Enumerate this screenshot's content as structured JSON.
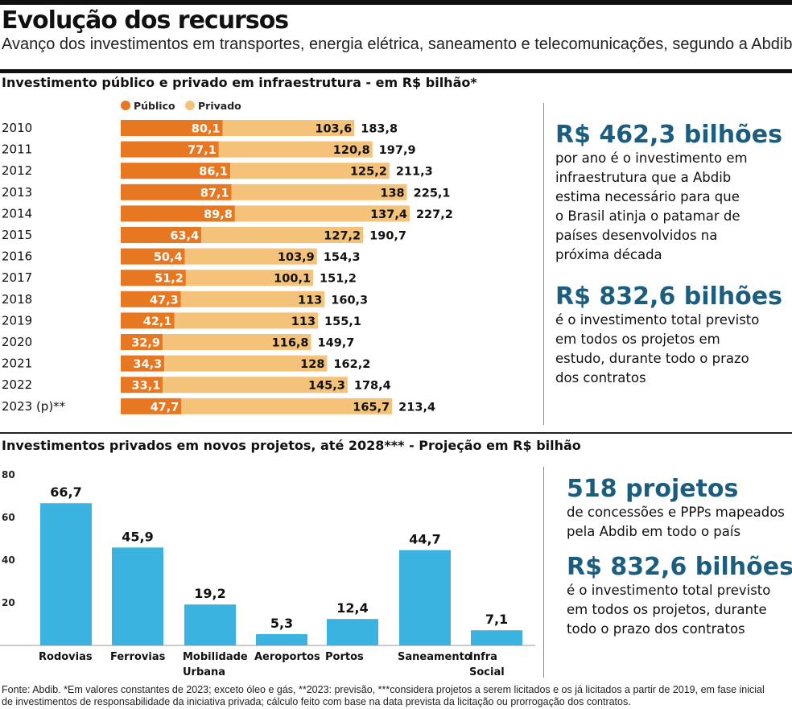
{
  "header": {
    "title": "Evolução dos recursos",
    "subtitle": "Avanço dos investimentos em transportes, energia elétrica, saneamento e telecomunicações, segundo a Abdib"
  },
  "colors": {
    "publico": "#e87722",
    "privado": "#f5c27a",
    "projecao": "#3ab3e0",
    "highlight": "#1a5d7e"
  },
  "chart_data": [
    {
      "type": "bar",
      "orientation": "horizontal",
      "stacked": true,
      "title": "Investimento público e privado em infraestrutura - em R$ bilhão*",
      "legend_position": "top",
      "categories": [
        "2010",
        "2011",
        "2012",
        "2013",
        "2014",
        "2015",
        "2016",
        "2017",
        "2018",
        "2019",
        "2020",
        "2021",
        "2022",
        "2023 (p)**"
      ],
      "series": [
        {
          "name": "Público",
          "values": [
            80.1,
            77.1,
            86.1,
            87.1,
            89.8,
            63.4,
            50.4,
            51.2,
            47.3,
            42.1,
            32.9,
            34.3,
            33.1,
            47.7
          ],
          "labels": [
            "80,1",
            "77,1",
            "86,1",
            "87,1",
            "89,8",
            "63,4",
            "50,4",
            "51,2",
            "47,3",
            "42,1",
            "32,9",
            "34,3",
            "33,1",
            "47,7"
          ]
        },
        {
          "name": "Privado",
          "values": [
            103.6,
            120.8,
            125.2,
            138,
            137.4,
            127.2,
            103.9,
            100.1,
            113,
            113,
            116.8,
            128,
            145.3,
            165.7
          ],
          "labels": [
            "103,6",
            "120,8",
            "125,2",
            "138",
            "137,4",
            "127,2",
            "103,9",
            "100,1",
            "113",
            "113",
            "116,8",
            "128",
            "145,3",
            "165,7"
          ]
        }
      ],
      "totals": [
        183.8,
        197.9,
        211.3,
        225.1,
        227.2,
        190.7,
        154.3,
        151.2,
        160.3,
        155.1,
        149.7,
        162.2,
        178.4,
        213.4
      ],
      "total_labels": [
        "183,8",
        "197,9",
        "211,3",
        "225,1",
        "227,2",
        "190,7",
        "154,3",
        "151,2",
        "160,3",
        "155,1",
        "149,7",
        "162,2",
        "178,4",
        "213,4"
      ]
    },
    {
      "type": "bar",
      "orientation": "vertical",
      "title": "Investimentos privados em novos projetos, até 2028*** - Projeção em R$ bilhão",
      "categories": [
        [
          "Rodovias"
        ],
        [
          "Ferrovias"
        ],
        [
          "Mobilidade",
          "Urbana"
        ],
        [
          "Aeroportos"
        ],
        [
          "Portos"
        ],
        [
          "Saneamento"
        ],
        [
          "Infra",
          "Social"
        ]
      ],
      "values": [
        66.7,
        45.9,
        19.2,
        5.3,
        12.4,
        44.7,
        7.1
      ],
      "labels": [
        "66,7",
        "45,9",
        "19,2",
        "5,3",
        "12,4",
        "44,7",
        "7,1"
      ],
      "ylim": [
        0,
        80
      ],
      "yticks": [
        "20",
        "40",
        "60",
        "80"
      ],
      "grid": false
    }
  ],
  "highlights_top": [
    {
      "value": "R$ 462,3 bilhões",
      "lines": [
        "por ano é o investimento em",
        "infraestrutura que a Abdib",
        "estima necessário para que",
        "o Brasil atinja o patamar de",
        "países desenvolvidos na",
        "próxima década"
      ]
    },
    {
      "value": "R$ 832,6 bilhões",
      "lines": [
        "é o investimento total previsto",
        "em todos os projetos em",
        "estudo, durante todo o prazo",
        "dos contratos"
      ]
    }
  ],
  "highlights_bottom": [
    {
      "value": "518 projetos",
      "lines": [
        "de concessões e PPPs mapeados",
        "pela Abdib em todo o país"
      ]
    },
    {
      "value": "R$ 832,6 bilhões",
      "lines": [
        "é o investimento total previsto",
        "em todos os projetos, durante",
        "todo o prazo dos contratos"
      ]
    }
  ],
  "footer": {
    "line1": "Fonte: Abdib. *Em valores constantes de 2023; exceto óleo e gás, **2023: previsão, ***considera projetos a serem licitados e os já licitados a partir de 2019, em fase inicial",
    "line2": "de investimentos de responsabilidade da iniciativa privada; cálculo feito com base na data prevista da licitação ou prorrogação dos contratos."
  }
}
